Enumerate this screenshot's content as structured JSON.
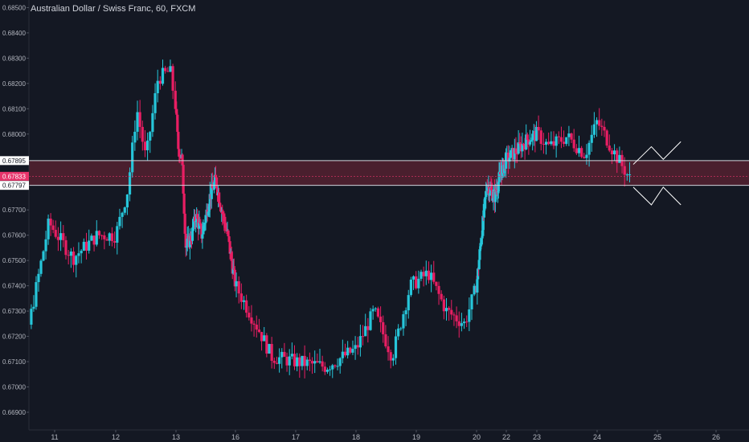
{
  "chart_data": {
    "type": "candlestick",
    "title": "Australian Dollar / Swiss Franc, 60, FXCM",
    "ylim": [
      0.6683,
      0.6853
    ],
    "y_ticks": [
      "0.68500",
      "0.68400",
      "0.68300",
      "0.68200",
      "0.68100",
      "0.68000",
      "0.67900",
      "0.67700",
      "0.67600",
      "0.67500",
      "0.67400",
      "0.67300",
      "0.67200",
      "0.67100",
      "0.67000",
      "0.66900"
    ],
    "x_ticks": [
      "11",
      "12",
      "13",
      "16",
      "17",
      "18",
      "19",
      "20",
      "22",
      "23",
      "24",
      "25",
      "26"
    ],
    "x_range": [
      "10",
      "26"
    ],
    "zone": {
      "upper": "0.67895",
      "mid": "0.67833",
      "lower": "0.67797"
    },
    "price_path": [
      [
        "10",
        0.6701
      ],
      [
        "10.5",
        0.6718
      ],
      [
        "10.9",
        0.6765
      ],
      [
        "11.3",
        0.6751
      ],
      [
        "11.7",
        0.676
      ],
      [
        "12",
        0.676
      ],
      [
        "12.2",
        0.6778
      ],
      [
        "12.35",
        0.681
      ],
      [
        "12.5",
        0.679
      ],
      [
        "12.7",
        0.6822
      ],
      [
        "12.9",
        0.6825
      ],
      [
        "13.1",
        0.6795
      ],
      [
        "13.3",
        0.679
      ],
      [
        "13.5",
        0.6755
      ],
      [
        "13.8",
        0.676
      ],
      [
        "14",
        0.6768
      ],
      [
        "14.3",
        0.676
      ],
      [
        "14.7",
        0.6775
      ],
      [
        "15",
        0.6782
      ],
      [
        "15.3",
        0.677
      ],
      [
        "15.6",
        0.676
      ],
      [
        "16",
        0.674
      ],
      [
        "16.4",
        0.6722
      ],
      [
        "16.6",
        0.6712
      ],
      [
        "17",
        0.671
      ],
      [
        "17.5",
        0.6708
      ],
      [
        "18",
        0.6715
      ],
      [
        "18.3",
        0.673
      ],
      [
        "18.6",
        0.6712
      ],
      [
        "18.9",
        0.674
      ],
      [
        "19.2",
        0.6745
      ],
      [
        "19.5",
        0.673
      ],
      [
        "19.8",
        0.6725
      ],
      [
        "20",
        0.674
      ],
      [
        "20.3",
        0.6758
      ],
      [
        "20.7",
        0.678
      ],
      [
        "21.2",
        0.6775
      ],
      [
        "21.6",
        0.6784
      ],
      [
        "22",
        0.679
      ],
      [
        "22.3",
        0.6793
      ],
      [
        "22.7",
        0.6798
      ],
      [
        "23",
        0.68
      ],
      [
        "23.2",
        0.6795
      ],
      [
        "23.5",
        0.6799
      ],
      [
        "23.8",
        0.6792
      ],
      [
        "24",
        0.6805
      ],
      [
        "24.3",
        0.6792
      ],
      [
        "24.55",
        0.6782
      ]
    ],
    "projection": {
      "upper": [
        [
          "24.6",
          0.6788
        ],
        [
          "24.9",
          0.6795
        ],
        [
          "25.1",
          0.679
        ],
        [
          "25.4",
          0.6797
        ]
      ],
      "lower": [
        [
          "24.6",
          0.6779
        ],
        [
          "24.9",
          0.6772
        ],
        [
          "25.1",
          0.6779
        ],
        [
          "25.4",
          0.6772
        ]
      ]
    },
    "colors": {
      "background": "#141823",
      "up": "#26c6da",
      "down": "#e91e63",
      "zone_fill": "#4a1f2e",
      "zone_line": "#d1d4dc",
      "zone_mid": "#e8346b",
      "text": "#b2b5be",
      "label_bg": "#ffffff",
      "projection": "#ffffff"
    },
    "grid": false
  }
}
